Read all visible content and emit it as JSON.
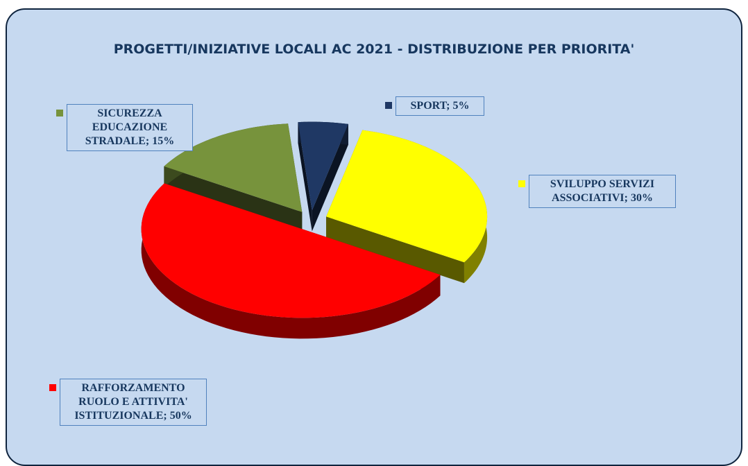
{
  "chart_data": {
    "type": "pie3d",
    "title": "PROGETTI/INIZIATIVE LOCALI AC 2021 - DISTRIBUZIONE PER PRIORITA'",
    "values": [
      5,
      30,
      50,
      15
    ],
    "value_labels": [
      "SPORT; 5%",
      "SVILUPPO SERVIZI ASSOCIATIVI; 30%",
      "RAFFORZAMENTO RUOLO E ATTIVITA' ISTITUZIONALE; 50%",
      "SICUREZZA EDUCAZIONE STRADALE; 15%"
    ],
    "colors": [
      "#1f3864",
      "#ffff00",
      "#ff0000",
      "#77933c"
    ]
  }
}
